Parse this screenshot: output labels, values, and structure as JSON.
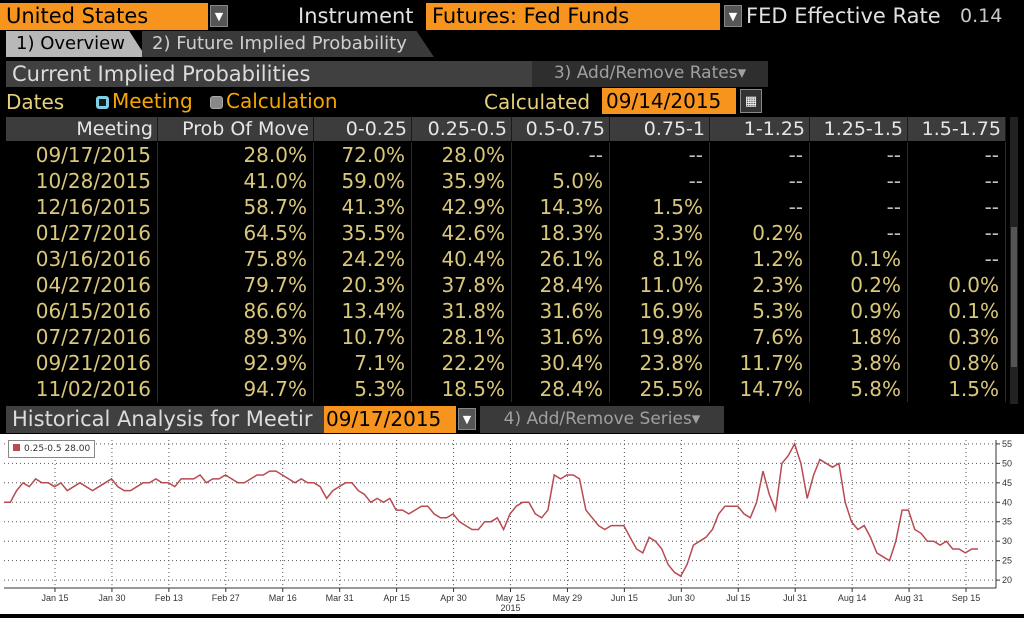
{
  "topbar": {
    "country": "United States",
    "instrument_label": "Instrument",
    "instrument_value": "Futures: Fed Funds",
    "rate_label": "FED Effective Rate",
    "rate_value": "0.14"
  },
  "tabs": [
    {
      "label": "1) Overview"
    },
    {
      "label": "2) Future Implied Probability"
    }
  ],
  "current": {
    "title": "Current Implied Probabilities",
    "add_remove_rates": "3) Add/Remove Rates▾",
    "dates_label": "Dates",
    "radio_meeting": "Meeting",
    "radio_calculation": "Calculation",
    "calculated_label": "Calculated",
    "calculated_date": "09/14/2015"
  },
  "table": {
    "headers": [
      "Meeting",
      "Prob Of Move",
      "0-0.25",
      "0.25-0.5",
      "0.5-0.75",
      "0.75-1",
      "1-1.25",
      "1.25-1.5",
      "1.5-1.75"
    ],
    "rows": [
      [
        "09/17/2015",
        "28.0%",
        "72.0%",
        "28.0%",
        "--",
        "--",
        "--",
        "--",
        "--"
      ],
      [
        "10/28/2015",
        "41.0%",
        "59.0%",
        "35.9%",
        "5.0%",
        "--",
        "--",
        "--",
        "--"
      ],
      [
        "12/16/2015",
        "58.7%",
        "41.3%",
        "42.9%",
        "14.3%",
        "1.5%",
        "--",
        "--",
        "--"
      ],
      [
        "01/27/2016",
        "64.5%",
        "35.5%",
        "42.6%",
        "18.3%",
        "3.3%",
        "0.2%",
        "--",
        "--"
      ],
      [
        "03/16/2016",
        "75.8%",
        "24.2%",
        "40.4%",
        "26.1%",
        "8.1%",
        "1.2%",
        "0.1%",
        "--"
      ],
      [
        "04/27/2016",
        "79.7%",
        "20.3%",
        "37.8%",
        "28.4%",
        "11.0%",
        "2.3%",
        "0.2%",
        "0.0%"
      ],
      [
        "06/15/2016",
        "86.6%",
        "13.4%",
        "31.8%",
        "31.6%",
        "16.9%",
        "5.3%",
        "0.9%",
        "0.1%"
      ],
      [
        "07/27/2016",
        "89.3%",
        "10.7%",
        "28.1%",
        "31.6%",
        "19.8%",
        "7.6%",
        "1.8%",
        "0.3%"
      ],
      [
        "09/21/2016",
        "92.9%",
        "7.1%",
        "22.2%",
        "30.4%",
        "23.8%",
        "11.7%",
        "3.8%",
        "0.8%"
      ],
      [
        "11/02/2016",
        "94.7%",
        "5.3%",
        "18.5%",
        "28.4%",
        "25.5%",
        "14.7%",
        "5.8%",
        "1.5%"
      ]
    ]
  },
  "historical": {
    "title": "Historical Analysis for Meetir",
    "meeting_date": "09/17/2015",
    "add_remove_series": "4) Add/Remove Series▾"
  },
  "chart_data": {
    "type": "line",
    "legend": "0.25-0.5 28.00",
    "legend_position": "top-left",
    "series_color": "#b84a52",
    "grid": true,
    "ylim": [
      19,
      56
    ],
    "y_ticks": [
      20,
      25,
      30,
      35,
      40,
      45,
      50,
      55
    ],
    "x_tick_labels": [
      "Jan 15",
      "Jan 30",
      "Feb 13",
      "Feb 27",
      "Mar 16",
      "Mar 31",
      "Apr 15",
      "Apr 30",
      "May 15",
      "May 29",
      "Jun 15",
      "Jun 30",
      "Jul 15",
      "Jul 31",
      "Aug 14",
      "Aug 31",
      "Sep 15"
    ],
    "year_label": "2015",
    "series": [
      {
        "values": [
          40,
          40,
          43,
          45,
          44,
          46,
          45,
          45,
          44,
          45,
          43,
          44,
          45,
          44,
          43,
          44,
          45,
          46,
          44,
          43,
          43,
          44,
          45,
          45,
          46,
          45,
          45,
          44,
          46,
          46,
          46,
          47,
          45,
          46,
          46,
          47,
          46,
          45,
          45,
          46,
          47,
          47,
          48,
          48,
          47,
          46,
          45,
          46,
          45,
          45,
          44,
          41,
          43,
          44,
          45,
          45,
          43,
          42,
          40,
          41,
          40,
          41,
          38,
          38,
          37,
          38,
          39,
          39,
          37,
          36,
          36,
          37,
          35,
          34,
          33,
          33,
          35,
          35,
          36,
          33,
          37,
          39,
          40,
          40,
          37,
          36,
          38,
          47,
          46,
          47,
          47,
          46,
          38,
          36,
          34,
          33,
          34,
          34,
          34,
          31,
          28,
          27,
          31,
          30,
          28,
          24,
          22,
          21,
          24,
          29,
          30,
          31,
          33,
          37,
          39,
          39,
          39,
          37,
          36,
          40,
          48,
          42,
          38,
          50,
          52,
          55,
          50,
          41,
          47,
          51,
          50,
          49,
          50,
          40,
          35,
          33,
          34,
          31,
          27,
          26,
          25,
          30,
          38,
          38,
          33,
          32,
          30,
          30,
          29,
          30,
          28,
          28,
          27,
          28,
          28
        ]
      }
    ]
  }
}
